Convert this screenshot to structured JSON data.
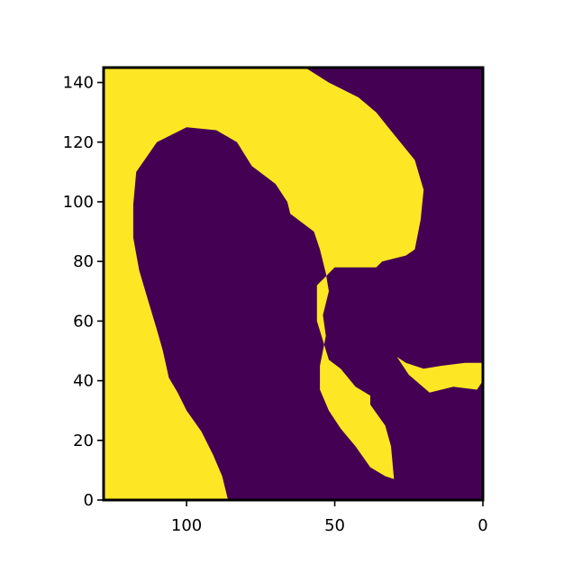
{
  "chart_data": {
    "type": "heatmap",
    "title": "",
    "xlabel": "",
    "ylabel": "",
    "x_axis_inverted": true,
    "xlim": [
      128,
      0
    ],
    "ylim": [
      0,
      145
    ],
    "x_ticks": [
      100,
      50,
      0
    ],
    "y_ticks": [
      0,
      20,
      40,
      60,
      80,
      100,
      120,
      140
    ],
    "x_tick_labels": [
      "100",
      "50",
      "0"
    ],
    "y_tick_labels": [
      "0",
      "20",
      "40",
      "60",
      "80",
      "100",
      "120",
      "140"
    ],
    "colormap": "viridis (binary)",
    "values_present": [
      0,
      1
    ],
    "colors": {
      "0": "#440154",
      "1": "#fde725"
    },
    "region_outline_1": {
      "description_units": "data units (x, y)",
      "west_strip": [
        [
          128,
          0
        ],
        [
          86,
          0
        ],
        [
          88,
          8
        ],
        [
          91,
          15
        ],
        [
          95,
          23
        ],
        [
          100,
          30
        ],
        [
          103,
          36
        ],
        [
          106,
          41
        ],
        [
          108,
          50
        ],
        [
          110,
          57
        ],
        [
          113,
          67
        ],
        [
          116,
          77
        ],
        [
          118,
          88
        ],
        [
          118,
          99
        ],
        [
          117,
          110
        ],
        [
          110,
          120
        ],
        [
          100,
          125
        ],
        [
          90,
          124
        ],
        [
          83,
          120
        ],
        [
          78,
          112
        ],
        [
          70,
          106
        ],
        [
          66,
          100
        ],
        [
          65,
          96
        ],
        [
          57,
          90
        ],
        [
          55,
          84
        ],
        [
          53,
          76
        ],
        [
          52,
          70
        ],
        [
          54,
          62
        ],
        [
          53,
          55
        ],
        [
          55,
          45
        ],
        [
          55,
          37
        ],
        [
          52,
          30
        ],
        [
          48,
          24
        ],
        [
          43,
          18
        ],
        [
          38,
          11
        ],
        [
          33,
          8
        ],
        [
          30,
          7
        ],
        [
          31,
          18
        ],
        [
          33,
          25
        ],
        [
          38,
          32
        ],
        [
          38,
          35
        ],
        [
          43,
          38
        ],
        [
          48,
          44
        ],
        [
          52,
          47
        ],
        [
          56,
          60
        ],
        [
          56,
          72
        ],
        [
          50,
          78
        ],
        [
          36,
          78
        ],
        [
          34,
          80
        ],
        [
          26,
          82
        ],
        [
          23,
          84
        ],
        [
          21,
          94
        ],
        [
          20,
          104
        ],
        [
          23,
          114
        ],
        [
          32,
          125
        ],
        [
          36,
          130
        ],
        [
          42,
          135
        ],
        [
          52,
          140
        ],
        [
          60,
          145
        ],
        [
          128,
          145
        ]
      ],
      "east_blob": [
        [
          29,
          48
        ],
        [
          25,
          42
        ],
        [
          18,
          36
        ],
        [
          10,
          38
        ],
        [
          2,
          37
        ],
        [
          0,
          40
        ],
        [
          0,
          46
        ],
        [
          6,
          46
        ],
        [
          14,
          45
        ],
        [
          20,
          44
        ],
        [
          26,
          46
        ]
      ]
    }
  }
}
